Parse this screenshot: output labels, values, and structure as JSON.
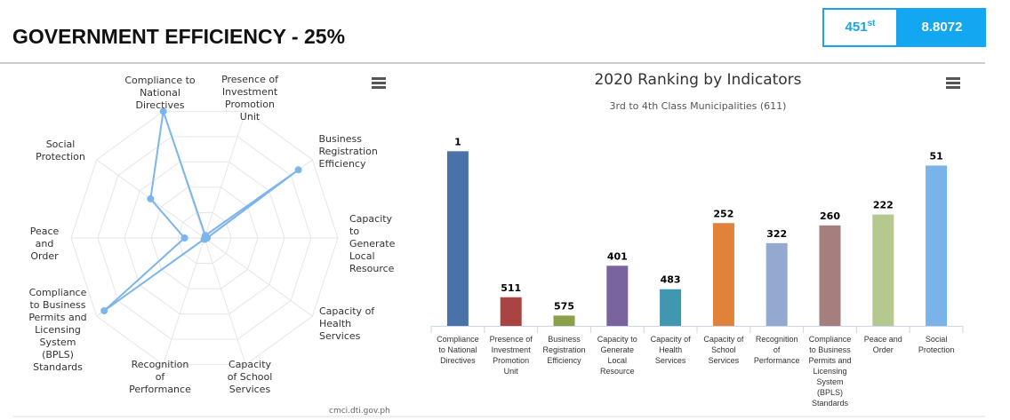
{
  "header": {
    "title": "GOVERNMENT EFFICIENCY - 25%",
    "rank": "451",
    "rank_suffix": "st",
    "score": "8.8072"
  },
  "chart_data": [
    {
      "type": "radar",
      "categories": [
        "Compliance to National Directives",
        "Presence of Investment Promotion Unit",
        "Business Registration Efficiency",
        "Capacity to Generate Local Resource",
        "Capacity of Health Services",
        "Capacity of School Services",
        "Recognition of Performance",
        "Compliance to Business Permits and Licensing System (BPLS) Standards",
        "Peace and Order",
        "Social Protection"
      ],
      "values": [
        1,
        0.02,
        0.87,
        0.02,
        0.01,
        0.01,
        0.01,
        0.93,
        0.15,
        0.5
      ],
      "color": "#7cb5ec",
      "rlim": [
        0,
        1
      ]
    },
    {
      "type": "bar",
      "title": "2020 Ranking by Indicators",
      "subtitle": "3rd to 4th Class Municipalities (611)",
      "categories": [
        "Compliance to National Directives",
        "Presence of Investment Promotion Unit",
        "Business Registration Efficiency",
        "Capacity to Generate Local Resource",
        "Capacity of Health Services",
        "Capacity of School Services",
        "Recognition of Performance",
        "Compliance to Business Permits and Licensing System (BPLS) Standards",
        "Peace and Order",
        "Social Protection"
      ],
      "values": [
        1,
        511,
        575,
        401,
        483,
        252,
        322,
        260,
        222,
        51
      ],
      "colors": [
        "#4a72a8",
        "#a94442",
        "#8ca04a",
        "#7a64a0",
        "#3f97b0",
        "#e0823a",
        "#93a9d0",
        "#a57f7e",
        "#b5c98f",
        "#7ab3e8"
      ],
      "ylim": [
        611,
        0
      ]
    }
  ],
  "footer": {
    "credit": "cmci.dti.gov.ph"
  }
}
